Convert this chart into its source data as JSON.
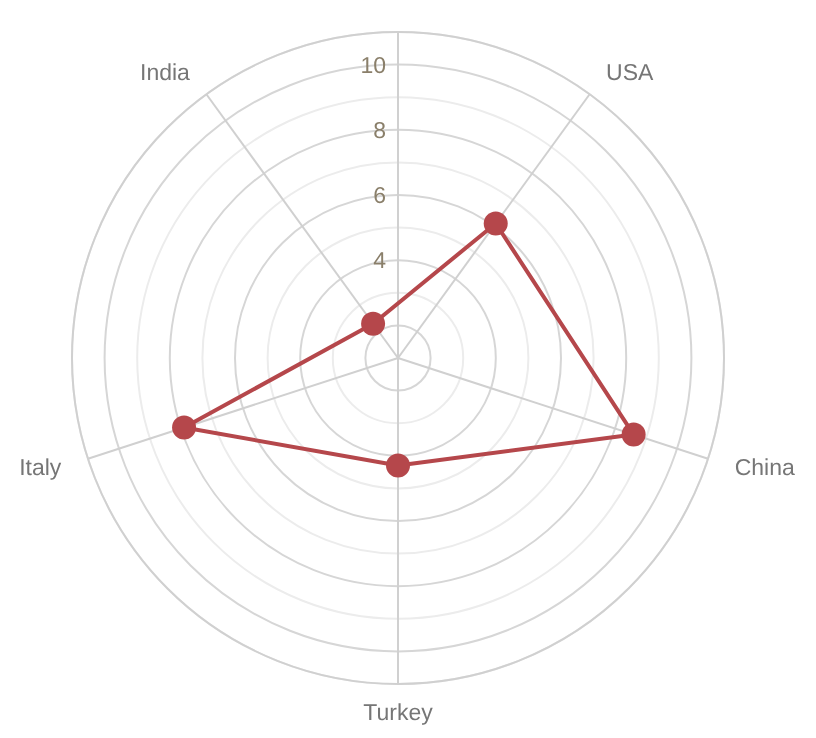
{
  "chart_data": {
    "type": "radar",
    "categories": [
      "USA",
      "China",
      "Turkey",
      "Italy",
      "India"
    ],
    "series": [
      {
        "color": "#b5474b",
        "values": [
          6.1,
          8.6,
          4.3,
          7.9,
          2.3
        ]
      }
    ],
    "ylim": [
      1,
      11
    ],
    "yticks": [
      4,
      6,
      8,
      10
    ],
    "grid": true,
    "marker": "circle",
    "line_style": "solid"
  }
}
